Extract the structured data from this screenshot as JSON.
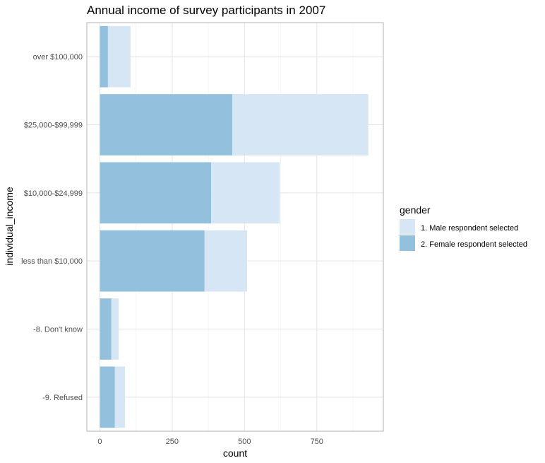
{
  "chart_data": {
    "type": "bar",
    "orientation": "horizontal",
    "stacked": true,
    "title": "Annual income of survey participants in 2007",
    "xlabel": "count",
    "ylabel": "individual_income",
    "categories": [
      "over $100,000",
      "$25,000-$99,999",
      "$10,000-$24,999",
      "less than $10,000",
      "-8. Don't know",
      "-9. Refused"
    ],
    "series": [
      {
        "name": "2. Female respondent selected",
        "color": "#92c0dd",
        "values": [
          28,
          458,
          385,
          362,
          40,
          52
        ]
      },
      {
        "name": "1. Male respondent selected",
        "color": "#d6e6f4",
        "values": [
          78,
          470,
          237,
          147,
          25,
          35
        ]
      }
    ],
    "xlim": [
      -45,
      980
    ],
    "xticks": [
      0,
      250,
      500,
      750
    ],
    "xtick_labels": [
      "0",
      "250",
      "500",
      "750"
    ],
    "grid": true,
    "legend": {
      "title": "gender",
      "position": "right",
      "entries": [
        {
          "label": "1. Male respondent selected",
          "color": "#d6e6f4"
        },
        {
          "label": "2. Female respondent selected",
          "color": "#92c0dd"
        }
      ]
    }
  }
}
